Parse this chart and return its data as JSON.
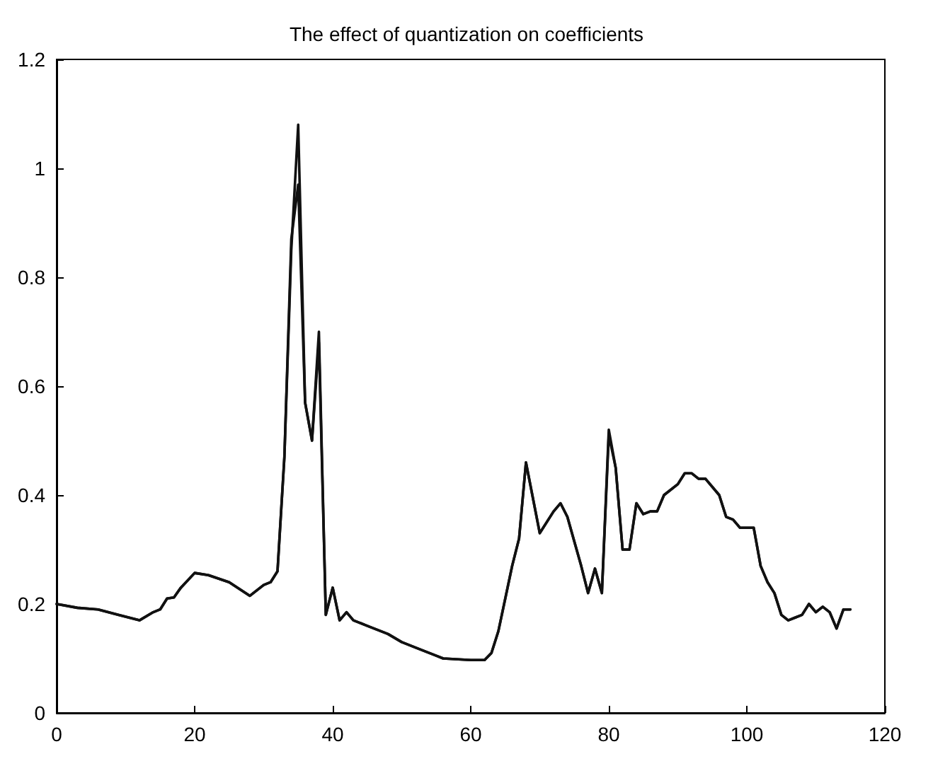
{
  "chart_data": {
    "type": "line",
    "title": "The effect of quantization on coefficients",
    "x": [
      0,
      3,
      6,
      9,
      12,
      14,
      15,
      16,
      17,
      18,
      20,
      22,
      25,
      28,
      30,
      31,
      32,
      33,
      34,
      35,
      36,
      37,
      38,
      39,
      40,
      41,
      42,
      43,
      45,
      48,
      50,
      52,
      55,
      56,
      60,
      62,
      63,
      64,
      65,
      66,
      67,
      68,
      70,
      72,
      73,
      74,
      76,
      77,
      78,
      79,
      80,
      81,
      82,
      83,
      84,
      85,
      86,
      87,
      88,
      90,
      91,
      92,
      93,
      94,
      96,
      97,
      98,
      99,
      101,
      102,
      103,
      104,
      105,
      106,
      107,
      108,
      109,
      110,
      111,
      112,
      113,
      114,
      115
    ],
    "series": [
      {
        "color": "#111111",
        "values": [
          0.2,
          0.193,
          0.19,
          0.18,
          0.17,
          0.185,
          0.19,
          0.21,
          0.212,
          0.23,
          0.257,
          0.253,
          0.24,
          0.215,
          0.235,
          0.24,
          0.26,
          0.47,
          0.85,
          1.08,
          0.57,
          0.5,
          0.7,
          0.18,
          0.23,
          0.17,
          0.185,
          0.17,
          0.16,
          0.145,
          0.13,
          0.12,
          0.105,
          0.1,
          0.097,
          0.097,
          0.11,
          0.15,
          0.21,
          0.27,
          0.32,
          0.46,
          0.33,
          0.37,
          0.385,
          0.36,
          0.27,
          0.22,
          0.265,
          0.22,
          0.52,
          0.45,
          0.3,
          0.3,
          0.385,
          0.365,
          0.37,
          0.37,
          0.4,
          0.42,
          0.44,
          0.44,
          0.43,
          0.43,
          0.4,
          0.36,
          0.355,
          0.34,
          0.34,
          0.27,
          0.24,
          0.22,
          0.18,
          0.17,
          0.175,
          0.18,
          0.2,
          0.185,
          0.195,
          0.185,
          0.155,
          0.19,
          0.19
        ]
      },
      {
        "color": "#111111",
        "values": [
          0.2,
          0.193,
          0.19,
          0.18,
          0.17,
          0.185,
          0.19,
          0.21,
          0.212,
          0.23,
          0.257,
          0.253,
          0.24,
          0.215,
          0.235,
          0.24,
          0.26,
          0.47,
          0.87,
          0.97,
          0.57,
          0.5,
          0.68,
          0.18,
          0.23,
          0.17,
          0.185,
          0.17,
          0.16,
          0.145,
          0.13,
          0.12,
          0.105,
          0.1,
          0.097,
          0.097,
          0.11,
          0.15,
          0.21,
          0.27,
          0.32,
          0.46,
          0.33,
          0.37,
          0.385,
          0.36,
          0.27,
          0.22,
          0.265,
          0.22,
          0.51,
          0.45,
          0.3,
          0.3,
          0.385,
          0.365,
          0.37,
          0.37,
          0.4,
          0.42,
          0.44,
          0.44,
          0.43,
          0.43,
          0.4,
          0.36,
          0.355,
          0.34,
          0.34,
          0.27,
          0.24,
          0.22,
          0.18,
          0.17,
          0.175,
          0.18,
          0.2,
          0.185,
          0.195,
          0.185,
          0.155,
          0.19,
          0.19
        ]
      }
    ],
    "xlim": [
      0,
      120
    ],
    "xticks": [
      0,
      20,
      40,
      60,
      80,
      100,
      120
    ],
    "ylim": [
      0,
      1.2
    ],
    "yticks": [
      0,
      0.2,
      0.4,
      0.6,
      0.8,
      1,
      1.2
    ],
    "grid": false,
    "marker": "none",
    "line_style": "solid"
  }
}
